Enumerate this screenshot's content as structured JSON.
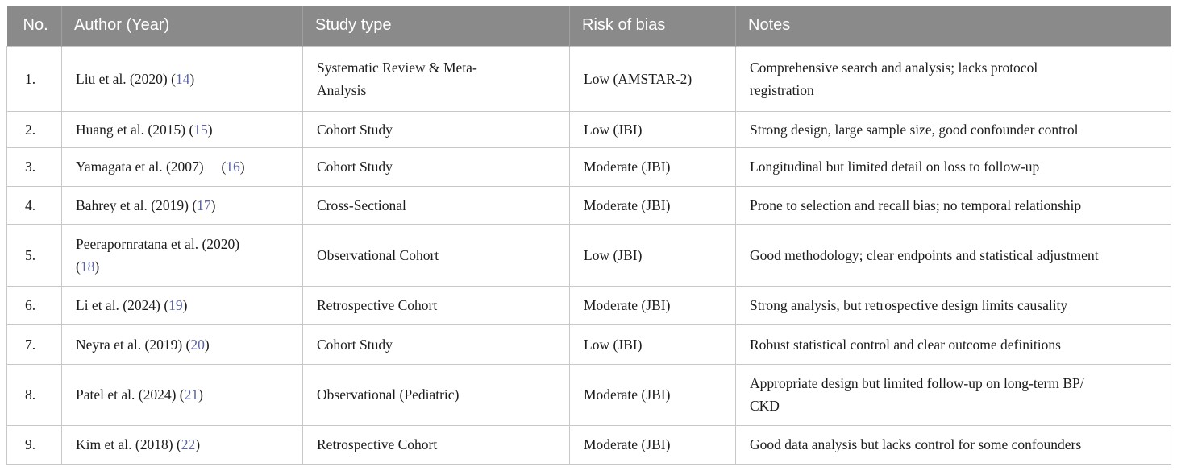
{
  "theme": {
    "header_bg": "#8a8a8a",
    "header_text": "#ffffff",
    "border_color": "#c8c8c8",
    "citation_color": "#5c63a2"
  },
  "table": {
    "columns": [
      {
        "key": "no",
        "label": "No."
      },
      {
        "key": "author",
        "label": "Author (Year)"
      },
      {
        "key": "study_type",
        "label": "Study type"
      },
      {
        "key": "risk",
        "label": "Risk of bias"
      },
      {
        "key": "notes",
        "label": "Notes"
      }
    ],
    "rows": [
      {
        "no": "1.",
        "author": [
          "Liu et al. (2020) (",
          {
            "cite": "14"
          },
          ")"
        ],
        "study_type": "Systematic Review & Meta-\nAnalysis",
        "risk": "Low (AMSTAR-2)",
        "notes": "Comprehensive search and analysis; lacks protocol\nregistration"
      },
      {
        "no": "2.",
        "author": [
          "Huang et al. (2015) (",
          {
            "cite": "15"
          },
          ")"
        ],
        "study_type": "Cohort Study",
        "risk": "Low (JBI)",
        "notes": "Strong design, large sample size, good confounder control"
      },
      {
        "no": "3.",
        "author": [
          "Yamagata et al. (2007)     (",
          {
            "cite": "16"
          },
          ")"
        ],
        "study_type": "Cohort Study",
        "risk": "Moderate (JBI)",
        "notes": "Longitudinal but limited detail on loss to follow-up"
      },
      {
        "no": "4.",
        "author": [
          "Bahrey et al. (2019) (",
          {
            "cite": "17"
          },
          ")"
        ],
        "study_type": "Cross-Sectional",
        "risk": "Moderate (JBI)",
        "notes": "Prone to selection and recall bias; no temporal relationship"
      },
      {
        "no": "5.",
        "author": [
          "Peerapornratana et al. (2020)",
          {
            "br": true
          },
          "(",
          {
            "cite": "18"
          },
          ")"
        ],
        "study_type": "Observational Cohort",
        "risk": "Low (JBI)",
        "notes": "Good methodology; clear endpoints and statistical adjustment"
      },
      {
        "no": "6.",
        "author": [
          "Li et al. (2024) (",
          {
            "cite": "19"
          },
          ")"
        ],
        "study_type": "Retrospective Cohort",
        "risk": "Moderate (JBI)",
        "notes": "Strong analysis, but retrospective design limits causality"
      },
      {
        "no": "7.",
        "author": [
          "Neyra et al. (2019) (",
          {
            "cite": "20"
          },
          ")"
        ],
        "study_type": "Cohort Study",
        "risk": "Low (JBI)",
        "notes": "Robust statistical control and clear outcome definitions"
      },
      {
        "no": "8.",
        "author": [
          "Patel et al. (2024) (",
          {
            "cite": "21"
          },
          ")"
        ],
        "study_type": "Observational (Pediatric)",
        "risk": "Moderate (JBI)",
        "notes": "Appropriate design but limited follow-up on long-term BP/\nCKD"
      },
      {
        "no": "9.",
        "author": [
          "Kim et al. (2018) (",
          {
            "cite": "22"
          },
          ")"
        ],
        "study_type": "Retrospective Cohort",
        "risk": "Moderate (JBI)",
        "notes": "Good data analysis but lacks control for some confounders"
      }
    ]
  }
}
